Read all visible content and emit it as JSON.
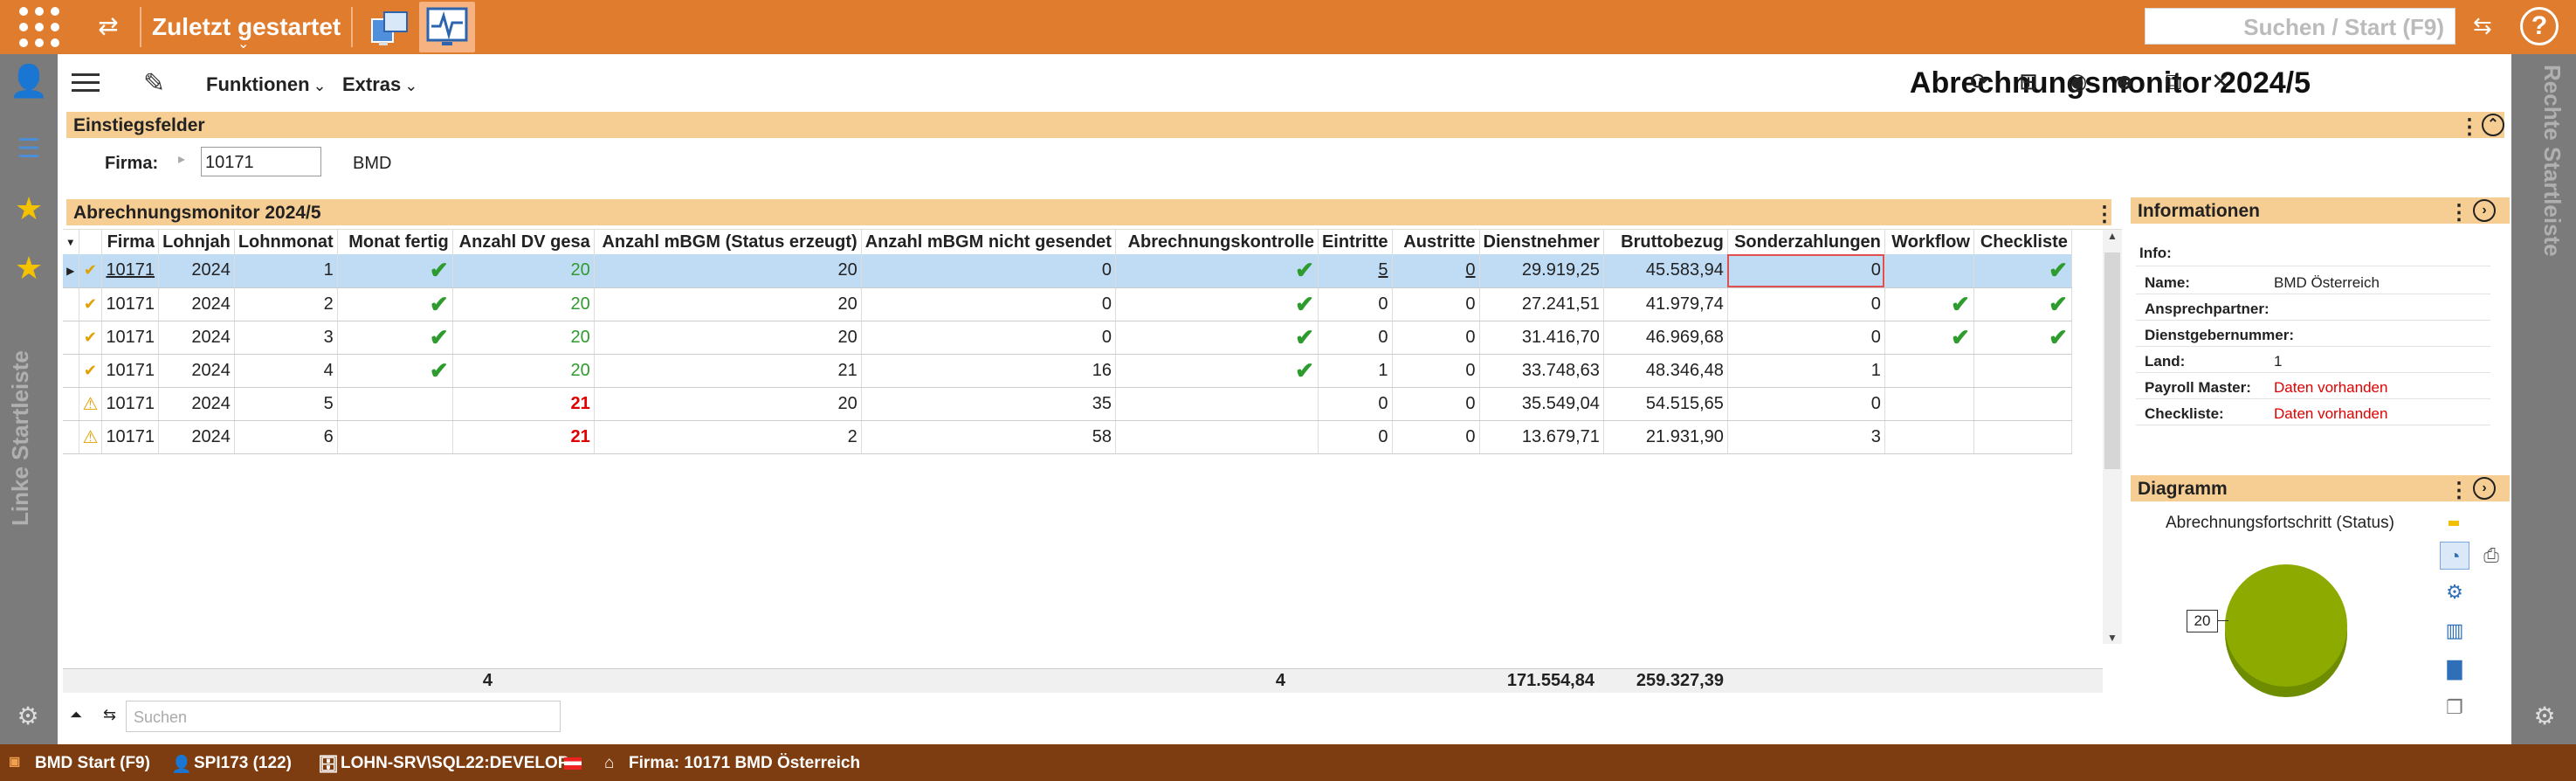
{
  "topbar": {
    "title": "Zuletzt gestartet",
    "search_placeholder": "Suchen / Start (F9)",
    "help": "?"
  },
  "leftbar": {
    "label": "Linke Startleiste"
  },
  "rightbar": {
    "label": "Rechte Startleiste"
  },
  "header": {
    "menu_funktionen": "Funktionen",
    "menu_extras": "Extras",
    "title": "Abrechnungsmonitor 2024/5"
  },
  "einstieg": {
    "title": "Einstiegsfelder",
    "firma_label": "Firma:",
    "firma_value": "10171",
    "firma_name": "BMD"
  },
  "grid": {
    "title": "Abrechnungsmonitor 2024/5",
    "columns": [
      "Firma",
      "Lohnjah",
      "Lohnmonat",
      "Monat fertig",
      "Anzahl DV gesa",
      "Anzahl mBGM (Status erzeugt)",
      "Anzahl mBGM nicht gesendet",
      "Abrechnungskontrolle",
      "Eintritte",
      "Austritte",
      "Dienstnehmer",
      "Bruttobezug",
      "Sonderzahlungen",
      "Workflow",
      "Checkliste"
    ],
    "rows": [
      {
        "firma": "10171",
        "jahr": "2024",
        "monat": "1",
        "fertig": "✔",
        "dv": "20",
        "erzeugt": "20",
        "nicht": "0",
        "kontrolle": "✔",
        "ein": "5",
        "aus": "0",
        "dn": "29.919,25",
        "brutto": "45.583,94",
        "sonder": "0",
        "workflow": "",
        "check": "✔"
      },
      {
        "firma": "10171",
        "jahr": "2024",
        "monat": "2",
        "fertig": "✔",
        "dv": "20",
        "erzeugt": "20",
        "nicht": "0",
        "kontrolle": "✔",
        "ein": "0",
        "aus": "0",
        "dn": "27.241,51",
        "brutto": "41.979,74",
        "sonder": "0",
        "workflow": "✔",
        "check": "✔"
      },
      {
        "firma": "10171",
        "jahr": "2024",
        "monat": "3",
        "fertig": "✔",
        "dv": "20",
        "erzeugt": "20",
        "nicht": "0",
        "kontrolle": "✔",
        "ein": "0",
        "aus": "0",
        "dn": "31.416,70",
        "brutto": "46.969,68",
        "sonder": "0",
        "workflow": "✔",
        "check": "✔"
      },
      {
        "firma": "10171",
        "jahr": "2024",
        "monat": "4",
        "fertig": "✔",
        "dv": "20",
        "erzeugt": "21",
        "nicht": "16",
        "kontrolle": "✔",
        "ein": "1",
        "aus": "0",
        "dn": "33.748,63",
        "brutto": "48.346,48",
        "sonder": "1",
        "workflow": "",
        "check": ""
      },
      {
        "firma": "10171",
        "jahr": "2024",
        "monat": "5",
        "fertig": "",
        "dv": "21",
        "erzeugt": "20",
        "nicht": "35",
        "kontrolle": "",
        "ein": "0",
        "aus": "0",
        "dn": "35.549,04",
        "brutto": "54.515,65",
        "sonder": "0",
        "workflow": "",
        "check": ""
      },
      {
        "firma": "10171",
        "jahr": "2024",
        "monat": "6",
        "fertig": "",
        "dv": "21",
        "erzeugt": "2",
        "nicht": "58",
        "kontrolle": "",
        "ein": "0",
        "aus": "0",
        "dn": "13.679,71",
        "brutto": "21.931,90",
        "sonder": "3",
        "workflow": "",
        "check": ""
      }
    ],
    "sums": {
      "fertig": "4",
      "kontrolle": "4",
      "dn": "171.554,84",
      "brutto": "259.327,39"
    },
    "search_placeholder": "Suchen"
  },
  "info": {
    "title": "Informationen",
    "info_label": "Info:",
    "fields": [
      {
        "label": "Name:",
        "value": "BMD Österreich"
      },
      {
        "label": "Ansprechpartner:",
        "value": ""
      },
      {
        "label": "Dienstgebernummer:",
        "value": ""
      },
      {
        "label": "Land:",
        "value": "1"
      },
      {
        "label": "Payroll Master:",
        "value": "Daten vorhanden"
      },
      {
        "label": "Checkliste:",
        "value": "Daten vorhanden"
      }
    ]
  },
  "diagramm": {
    "title": "Diagramm",
    "subtitle": "Abrechnungsfortschritt (Status)",
    "slice_label": "20"
  },
  "statusbar": {
    "start": "BMD Start (F9)",
    "user": "SPI173 (122)",
    "server": "LOHN-SRV\\SQL22:DEVELOP",
    "firma": "Firma: 10171 BMD Österreich"
  },
  "colors": {
    "accent": "#e07c2e",
    "band": "#f6cd92",
    "status": "#7d3d10",
    "check": "#2e9b2e",
    "warn": "#e00000"
  }
}
